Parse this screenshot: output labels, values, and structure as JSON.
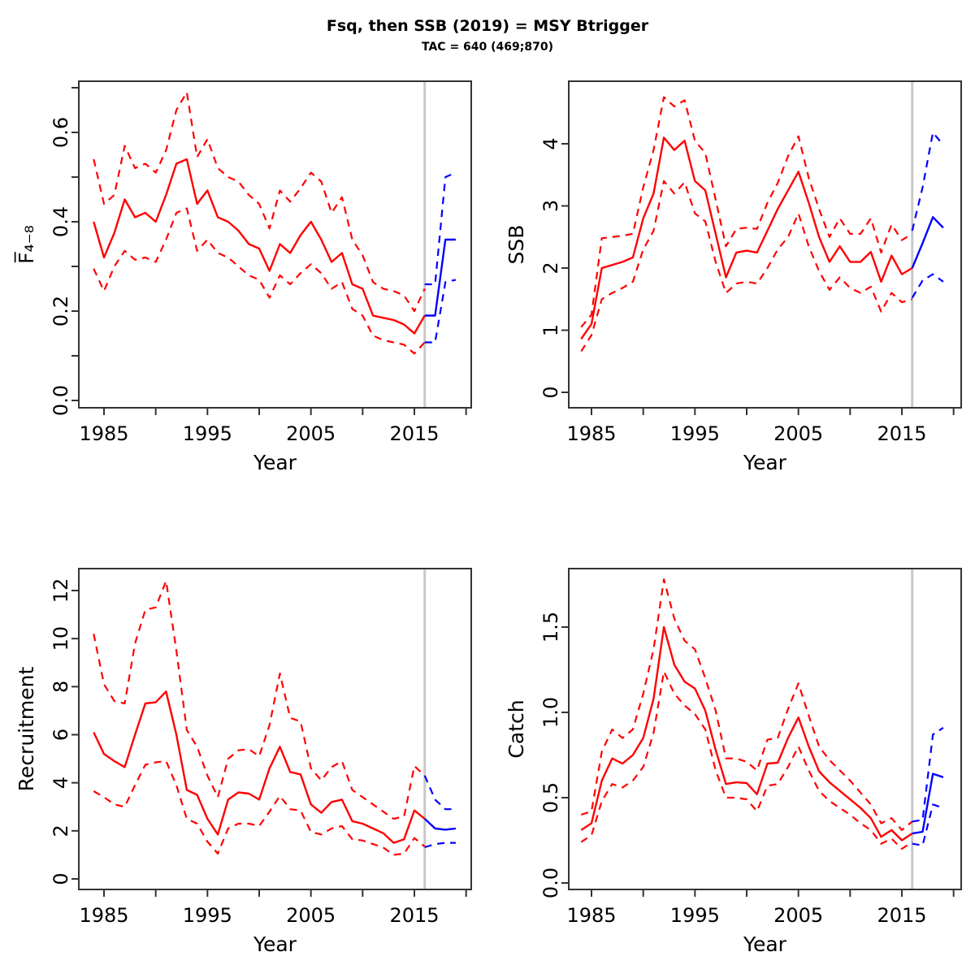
{
  "header": {
    "title": "Fsq, then SSB (2019) = MSY Btrigger",
    "subtitle": "TAC = 640 (469;870)"
  },
  "colors": {
    "historical": "#FF0000",
    "forecast": "#0000FF",
    "divider": "#C9C9C9",
    "axis": "#333333"
  },
  "divider_year": 2016,
  "chart_data": [
    {
      "id": "fbar",
      "name": "fishing-mortality-panel",
      "type": "line",
      "title": "Fbar 4-8 over Year",
      "xlabel": "Year",
      "ylabel": "F̅₄₋₈",
      "xlim": [
        1982.6,
        2020.5
      ],
      "ylim": [
        -0.016,
        0.715
      ],
      "grid": false,
      "legend": "none",
      "x_axis": {
        "label": "Year",
        "ticks": [
          1985,
          1990,
          1995,
          2000,
          2005,
          2010,
          2015,
          2020
        ],
        "tick_labels": [
          "1985",
          "",
          "1995",
          "",
          "2005",
          "",
          "2015",
          ""
        ]
      },
      "y_axis": {
        "label": "F̅₄₋₈",
        "ticks": [
          0,
          0.1,
          0.2,
          0.3,
          0.4,
          0.5,
          0.6,
          0.7
        ],
        "tick_labels": [
          "0.0",
          "",
          "0.2",
          "",
          "0.4",
          "",
          "0.6",
          ""
        ]
      },
      "vline": {
        "x": 2016
      },
      "series": [
        {
          "name": "historical-median",
          "period": "historical",
          "style": "solid",
          "color": "#FF0000",
          "x_start": 1984,
          "y": [
            0.4,
            0.32,
            0.375,
            0.45,
            0.41,
            0.42,
            0.4,
            0.46,
            0.53,
            0.54,
            0.44,
            0.47,
            0.41,
            0.4,
            0.38,
            0.35,
            0.34,
            0.29,
            0.35,
            0.33,
            0.37,
            0.4,
            0.36,
            0.31,
            0.33,
            0.26,
            0.25,
            0.19,
            0.185,
            0.18,
            0.17,
            0.15,
            0.19
          ]
        },
        {
          "name": "historical-upper-ci",
          "period": "historical",
          "style": "dashed",
          "color": "#FF0000",
          "x_start": 1984,
          "y": [
            0.54,
            0.44,
            0.46,
            0.57,
            0.52,
            0.53,
            0.51,
            0.56,
            0.65,
            0.69,
            0.545,
            0.585,
            0.52,
            0.5,
            0.49,
            0.46,
            0.44,
            0.385,
            0.47,
            0.445,
            0.475,
            0.51,
            0.49,
            0.42,
            0.455,
            0.36,
            0.325,
            0.265,
            0.25,
            0.245,
            0.235,
            0.2,
            0.25
          ]
        },
        {
          "name": "historical-lower-ci",
          "period": "historical",
          "style": "dashed",
          "color": "#FF0000",
          "x_start": 1984,
          "y": [
            0.295,
            0.245,
            0.3,
            0.335,
            0.315,
            0.32,
            0.31,
            0.36,
            0.42,
            0.43,
            0.335,
            0.36,
            0.33,
            0.32,
            0.3,
            0.28,
            0.27,
            0.23,
            0.28,
            0.26,
            0.285,
            0.305,
            0.285,
            0.25,
            0.265,
            0.205,
            0.19,
            0.145,
            0.135,
            0.13,
            0.125,
            0.105,
            0.13
          ]
        },
        {
          "name": "forecast-median",
          "period": "forecast",
          "style": "solid",
          "color": "#0000FF",
          "x_start": 2016,
          "y": [
            0.19,
            0.19,
            0.36,
            0.36
          ]
        },
        {
          "name": "forecast-upper-ci",
          "period": "forecast",
          "style": "dashed",
          "color": "#0000FF",
          "x_start": 2016,
          "y": [
            0.26,
            0.26,
            0.5,
            0.51
          ]
        },
        {
          "name": "forecast-lower-ci",
          "period": "forecast",
          "style": "dashed",
          "color": "#0000FF",
          "x_start": 2016,
          "y": [
            0.13,
            0.13,
            0.265,
            0.27
          ]
        }
      ]
    },
    {
      "id": "ssb",
      "name": "spawning-stock-biomass-panel",
      "type": "line",
      "title": "SSB over Year",
      "xlabel": "Year",
      "ylabel": "SSB",
      "xlim": [
        1982.6,
        2020.5
      ],
      "ylim": [
        -0.12,
        5.0
      ],
      "grid": false,
      "legend": "none",
      "x_axis": {
        "label": "Year",
        "ticks": [
          1985,
          1990,
          1995,
          2000,
          2005,
          2010,
          2015,
          2020
        ],
        "tick_labels": [
          "1985",
          "",
          "1995",
          "",
          "2005",
          "",
          "2015",
          ""
        ]
      },
      "y_axis": {
        "label": "SSB",
        "ticks": [
          0,
          1,
          2,
          3,
          4
        ],
        "tick_labels": [
          "0",
          "1",
          "2",
          "3",
          "4"
        ]
      },
      "vline": {
        "x": 2016
      },
      "series": [
        {
          "name": "historical-median",
          "period": "historical",
          "style": "solid",
          "color": "#FF0000",
          "x_start": 1984,
          "y": [
            0.86,
            1.1,
            2.0,
            2.05,
            2.1,
            2.17,
            2.8,
            3.2,
            4.1,
            3.9,
            4.05,
            3.4,
            3.25,
            2.55,
            1.85,
            2.25,
            2.28,
            2.25,
            2.6,
            2.95,
            3.25,
            3.55,
            3.05,
            2.5,
            2.1,
            2.35,
            2.1,
            2.1,
            2.26,
            1.78,
            2.2,
            1.9,
            2.0
          ]
        },
        {
          "name": "historical-upper-ci",
          "period": "historical",
          "style": "dashed",
          "color": "#FF0000",
          "x_start": 1984,
          "y": [
            1.05,
            1.25,
            2.48,
            2.5,
            2.52,
            2.55,
            3.3,
            3.9,
            4.75,
            4.6,
            4.7,
            4.05,
            3.85,
            3.1,
            2.35,
            2.63,
            2.65,
            2.63,
            3.05,
            3.37,
            3.8,
            4.12,
            3.45,
            2.95,
            2.5,
            2.8,
            2.55,
            2.55,
            2.8,
            2.25,
            2.7,
            2.45,
            2.55
          ]
        },
        {
          "name": "historical-lower-ci",
          "period": "historical",
          "style": "dashed",
          "color": "#FF0000",
          "x_start": 1984,
          "y": [
            0.66,
            0.92,
            1.5,
            1.6,
            1.68,
            1.78,
            2.3,
            2.6,
            3.4,
            3.2,
            3.38,
            2.88,
            2.75,
            2.1,
            1.6,
            1.75,
            1.78,
            1.75,
            2.0,
            2.3,
            2.5,
            2.88,
            2.35,
            1.95,
            1.65,
            1.85,
            1.68,
            1.6,
            1.7,
            1.3,
            1.6,
            1.45,
            1.5
          ]
        },
        {
          "name": "forecast-median",
          "period": "forecast",
          "style": "solid",
          "color": "#0000FF",
          "x_start": 2016,
          "y": [
            2.0,
            2.4,
            2.82,
            2.65
          ]
        },
        {
          "name": "forecast-upper-ci",
          "period": "forecast",
          "style": "dashed",
          "color": "#0000FF",
          "x_start": 2016,
          "y": [
            2.6,
            3.3,
            4.18,
            3.98
          ]
        },
        {
          "name": "forecast-lower-ci",
          "period": "forecast",
          "style": "dashed",
          "color": "#0000FF",
          "x_start": 2016,
          "y": [
            1.52,
            1.8,
            1.9,
            1.78
          ]
        }
      ]
    },
    {
      "id": "recruitment",
      "name": "recruitment-panel",
      "type": "line",
      "title": "Recruitment over Year",
      "xlabel": "Year",
      "ylabel": "Recruitment",
      "xlim": [
        1982.6,
        2020.5
      ],
      "ylim": [
        -0.45,
        13.0
      ],
      "grid": false,
      "legend": "none",
      "x_axis": {
        "label": "Year",
        "ticks": [
          1985,
          1990,
          1995,
          2000,
          2005,
          2010,
          2015,
          2020
        ],
        "tick_labels": [
          "1985",
          "",
          "1995",
          "",
          "2005",
          "",
          "2015",
          ""
        ]
      },
      "y_axis": {
        "label": "Recruitment",
        "ticks": [
          0,
          2,
          4,
          6,
          8,
          10,
          12
        ],
        "tick_labels": [
          "0",
          "2",
          "4",
          "6",
          "8",
          "10",
          "12"
        ]
      },
      "vline": {
        "x": 2016
      },
      "series": [
        {
          "name": "historical-median",
          "period": "historical",
          "style": "solid",
          "color": "#FF0000",
          "x_start": 1984,
          "y": [
            6.1,
            5.2,
            4.9,
            4.65,
            6.0,
            7.3,
            7.35,
            7.8,
            6.0,
            3.7,
            3.5,
            2.5,
            1.85,
            3.3,
            3.6,
            3.55,
            3.3,
            4.6,
            5.5,
            4.45,
            4.35,
            3.1,
            2.75,
            3.2,
            3.3,
            2.4,
            2.3,
            2.1,
            1.9,
            1.5,
            1.65,
            2.85,
            2.5
          ]
        },
        {
          "name": "historical-upper-ci",
          "period": "historical",
          "style": "dashed",
          "color": "#FF0000",
          "x_start": 1984,
          "y": [
            10.2,
            8.1,
            7.4,
            7.3,
            9.8,
            11.2,
            11.3,
            12.4,
            9.5,
            6.2,
            5.5,
            4.3,
            3.4,
            5.0,
            5.35,
            5.4,
            5.1,
            6.4,
            8.55,
            6.7,
            6.55,
            4.6,
            4.1,
            4.65,
            4.9,
            3.7,
            3.4,
            3.1,
            2.8,
            2.5,
            2.6,
            4.7,
            4.3
          ]
        },
        {
          "name": "historical-lower-ci",
          "period": "historical",
          "style": "dashed",
          "color": "#FF0000",
          "x_start": 1984,
          "y": [
            3.65,
            3.4,
            3.1,
            3.0,
            3.9,
            4.75,
            4.85,
            4.9,
            3.9,
            2.5,
            2.3,
            1.55,
            1.05,
            2.1,
            2.3,
            2.3,
            2.2,
            2.8,
            3.45,
            2.9,
            2.85,
            1.95,
            1.85,
            2.1,
            2.2,
            1.65,
            1.6,
            1.45,
            1.3,
            1.0,
            1.05,
            1.7,
            1.35
          ]
        },
        {
          "name": "forecast-median",
          "period": "forecast",
          "style": "solid",
          "color": "#0000FF",
          "x_start": 2016,
          "y": [
            2.5,
            2.1,
            2.05,
            2.1
          ]
        },
        {
          "name": "forecast-upper-ci",
          "period": "forecast",
          "style": "dashed",
          "color": "#0000FF",
          "x_start": 2016,
          "y": [
            4.3,
            3.3,
            2.9,
            2.9
          ]
        },
        {
          "name": "forecast-lower-ci",
          "period": "forecast",
          "style": "dashed",
          "color": "#0000FF",
          "x_start": 2016,
          "y": [
            1.32,
            1.45,
            1.5,
            1.5
          ]
        }
      ]
    },
    {
      "id": "catch",
      "name": "catch-panel",
      "type": "line",
      "title": "Catch over Year",
      "xlabel": "Year",
      "ylabel": "Catch",
      "xlim": [
        1982.6,
        2020.5
      ],
      "ylim": [
        -0.04,
        1.88
      ],
      "grid": false,
      "legend": "none",
      "x_axis": {
        "label": "Year",
        "ticks": [
          1985,
          1990,
          1995,
          2000,
          2005,
          2010,
          2015,
          2020
        ],
        "tick_labels": [
          "1985",
          "",
          "1995",
          "",
          "2005",
          "",
          "2015",
          ""
        ]
      },
      "y_axis": {
        "label": "Catch",
        "ticks": [
          0,
          0.5,
          1.0,
          1.5
        ],
        "tick_labels": [
          "0.0",
          "0.5",
          "1.0",
          "1.5"
        ]
      },
      "vline": {
        "x": 2016
      },
      "series": [
        {
          "name": "historical-median",
          "period": "historical",
          "style": "solid",
          "color": "#FF0000",
          "x_start": 1984,
          "y": [
            0.31,
            0.35,
            0.6,
            0.73,
            0.7,
            0.75,
            0.85,
            1.08,
            1.5,
            1.28,
            1.18,
            1.14,
            1.01,
            0.78,
            0.58,
            0.59,
            0.585,
            0.52,
            0.7,
            0.705,
            0.85,
            0.97,
            0.8,
            0.655,
            0.59,
            0.54,
            0.49,
            0.44,
            0.38,
            0.27,
            0.31,
            0.25,
            0.29
          ]
        },
        {
          "name": "historical-upper-ci",
          "period": "historical",
          "style": "dashed",
          "color": "#FF0000",
          "x_start": 1984,
          "y": [
            0.4,
            0.42,
            0.77,
            0.9,
            0.85,
            0.9,
            1.11,
            1.37,
            1.78,
            1.55,
            1.42,
            1.37,
            1.2,
            1.01,
            0.73,
            0.73,
            0.71,
            0.66,
            0.84,
            0.85,
            1.02,
            1.17,
            0.98,
            0.8,
            0.72,
            0.66,
            0.6,
            0.53,
            0.46,
            0.35,
            0.38,
            0.31,
            0.36
          ]
        },
        {
          "name": "historical-lower-ci",
          "period": "historical",
          "style": "dashed",
          "color": "#FF0000",
          "x_start": 1984,
          "y": [
            0.24,
            0.28,
            0.48,
            0.58,
            0.56,
            0.6,
            0.68,
            0.88,
            1.24,
            1.11,
            1.04,
            0.99,
            0.9,
            0.66,
            0.5,
            0.5,
            0.49,
            0.42,
            0.57,
            0.58,
            0.68,
            0.8,
            0.66,
            0.54,
            0.48,
            0.44,
            0.4,
            0.35,
            0.31,
            0.23,
            0.26,
            0.2,
            0.24
          ]
        },
        {
          "name": "forecast-median",
          "period": "forecast",
          "style": "solid",
          "color": "#0000FF",
          "x_start": 2016,
          "y": [
            0.29,
            0.3,
            0.64,
            0.62
          ]
        },
        {
          "name": "forecast-upper-ci",
          "period": "forecast",
          "style": "dashed",
          "color": "#0000FF",
          "x_start": 2016,
          "y": [
            0.36,
            0.37,
            0.87,
            0.91
          ]
        },
        {
          "name": "forecast-lower-ci",
          "period": "forecast",
          "style": "dashed",
          "color": "#0000FF",
          "x_start": 2016,
          "y": [
            0.23,
            0.22,
            0.46,
            0.44
          ]
        }
      ]
    }
  ]
}
